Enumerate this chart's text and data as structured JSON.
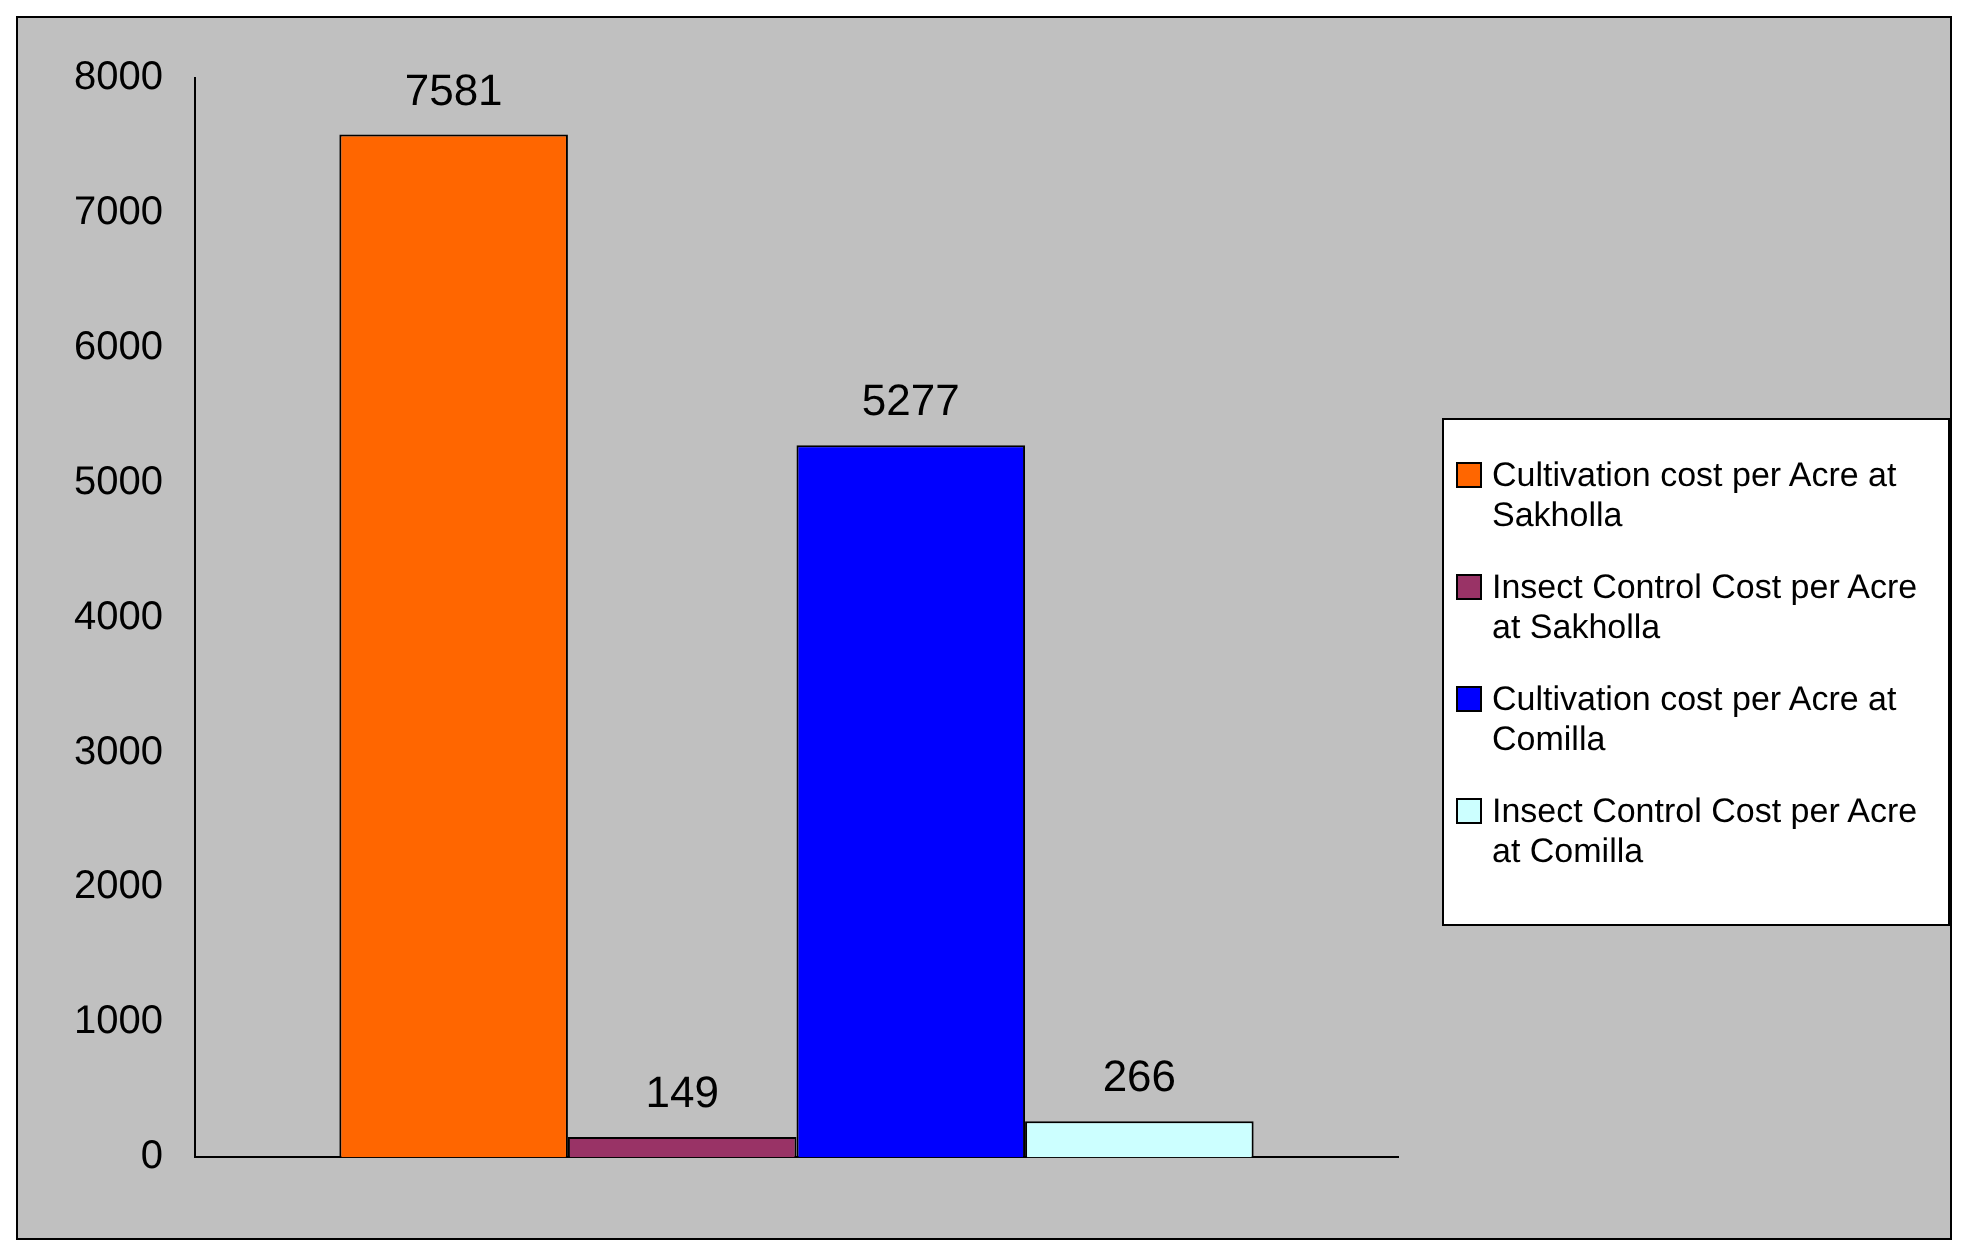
{
  "chart_data": {
    "type": "bar",
    "categories": [
      null
    ],
    "series": [
      {
        "name": "Cultivation cost per Acre at Sakholla",
        "color": "#ff6600",
        "values": [
          7581
        ]
      },
      {
        "name": "Insect Control Cost per Acre at Sakholla",
        "color": "#993366",
        "values": [
          149
        ]
      },
      {
        "name": "Cultivation cost per Acre at Comilla",
        "color": "#0000ff",
        "values": [
          5277
        ]
      },
      {
        "name": "Insect Control Cost per Acre at Comilla",
        "color": "#ccffff",
        "values": [
          266
        ]
      }
    ],
    "ylim": [
      0,
      8000
    ],
    "yticks": [
      0,
      1000,
      2000,
      3000,
      4000,
      5000,
      6000,
      7000,
      8000
    ],
    "grid": false,
    "legend": "right",
    "data_labels": true
  }
}
